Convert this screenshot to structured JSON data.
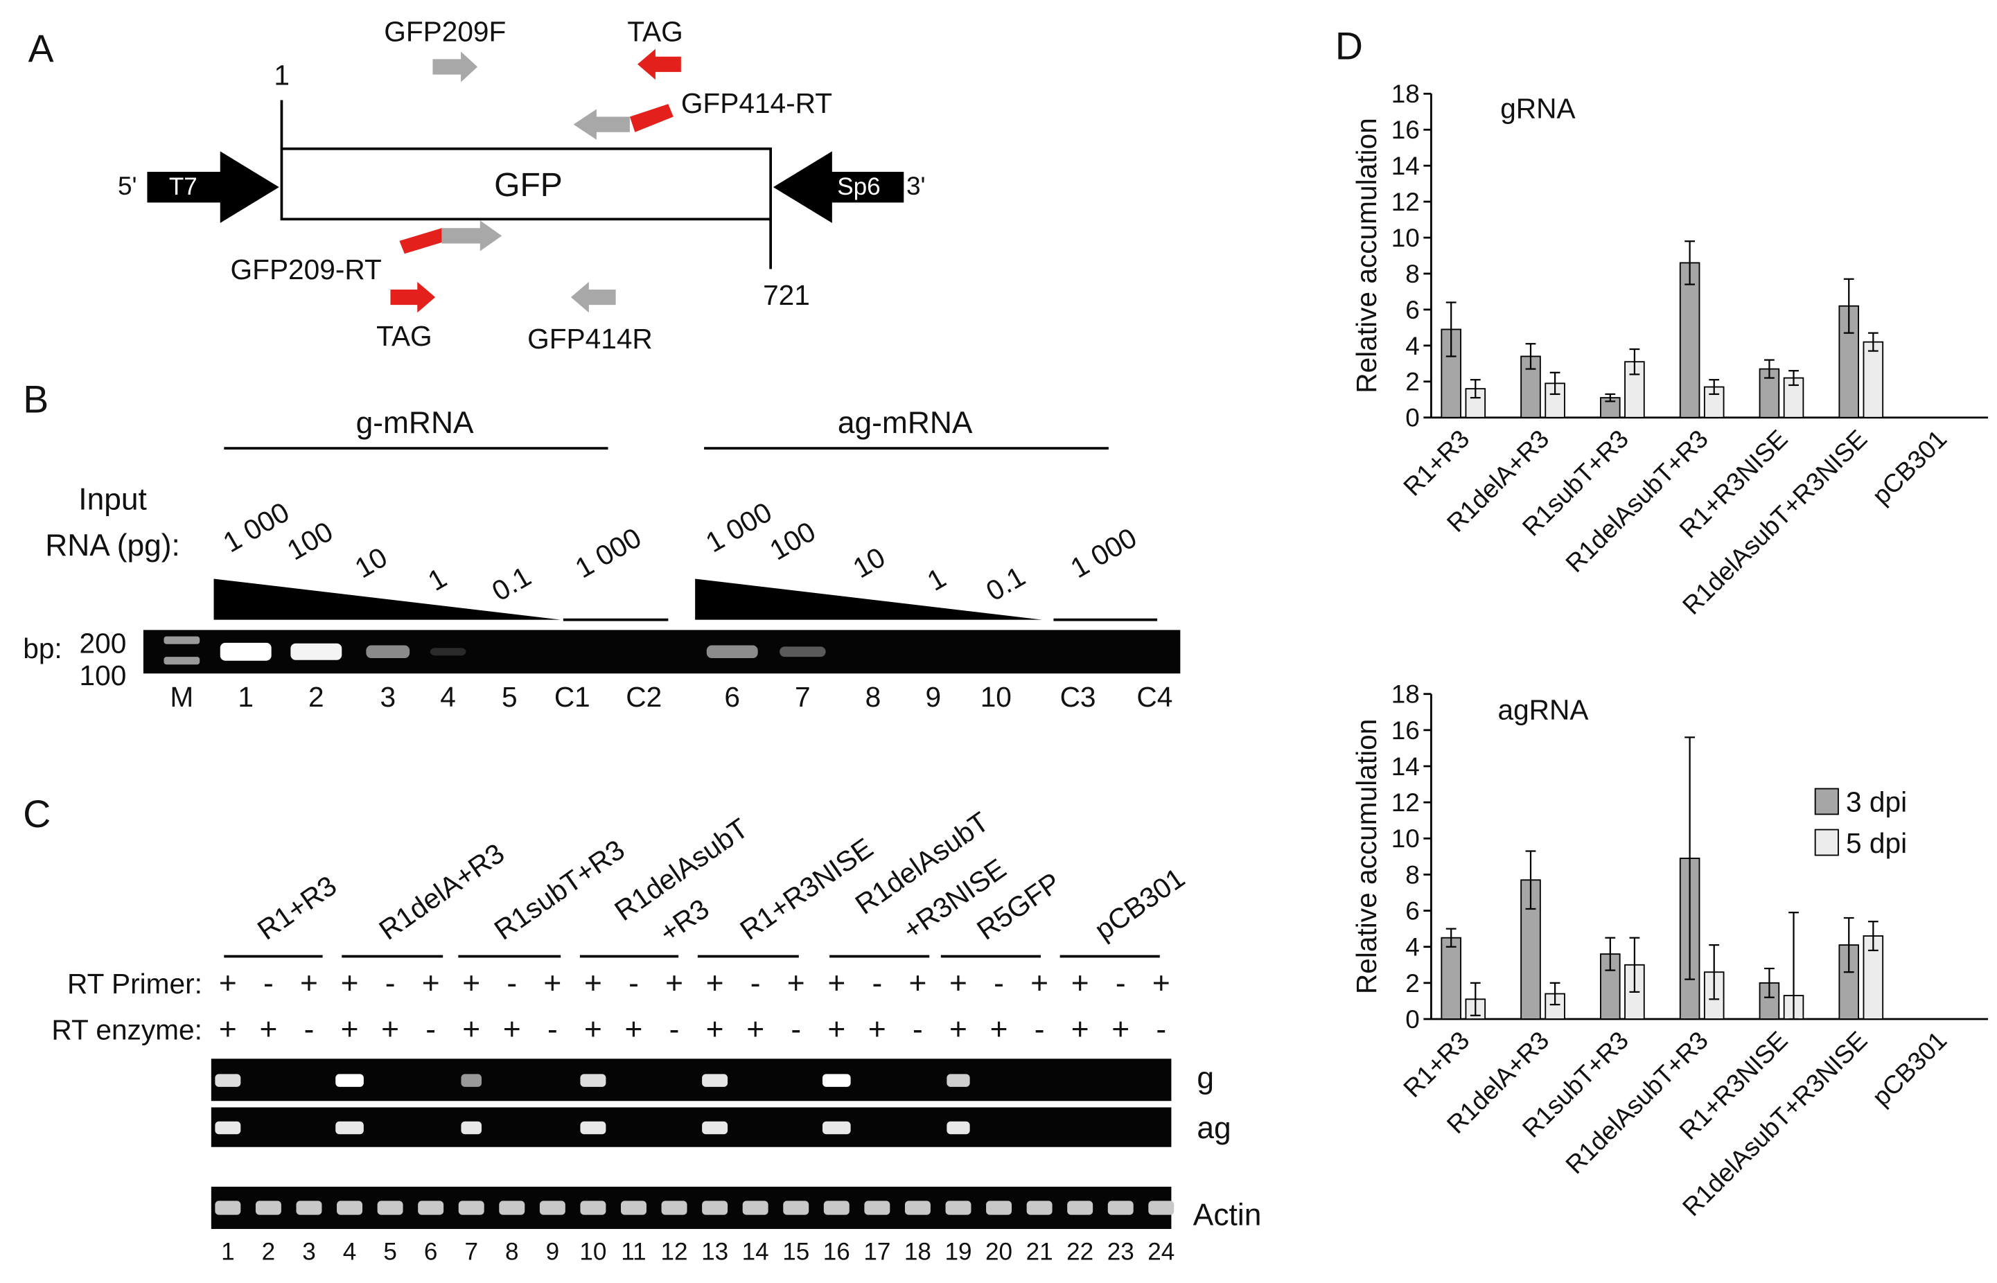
{
  "panels": {
    "a": "A",
    "b": "B",
    "c": "C",
    "d": "D"
  },
  "panel_a": {
    "primers_top": [
      "GFP209F",
      "TAG",
      "GFP414-RT"
    ],
    "primers_bottom": [
      "GFP209-RT",
      "TAG",
      "GFP414R"
    ],
    "pos_start": "1",
    "pos_end": "721",
    "gene": "GFP",
    "promoter_left": "T7",
    "promoter_right": "Sp6",
    "end5": "5'",
    "end3": "3'"
  },
  "panel_b": {
    "group1": "g-mRNA",
    "group2": "ag-mRNA",
    "input_label_1": "Input",
    "input_label_2": "RNA (pg):",
    "conc1": [
      "1 000",
      "100",
      "10",
      "1",
      "0.1",
      "1 000"
    ],
    "conc2": [
      "1 000",
      "100",
      "10",
      "1",
      "0.1",
      "1 000"
    ],
    "bp_label": "bp:",
    "bp_200": "200",
    "bp_100": "100",
    "lanes": [
      "M",
      "1",
      "2",
      "3",
      "4",
      "5",
      "C1",
      "C2",
      "6",
      "7",
      "8",
      "9",
      "10",
      "C3",
      "C4"
    ]
  },
  "panel_c": {
    "samples": [
      "R1+R3",
      "R1delA+R3",
      "R1subT+R3",
      "R1delAsubT",
      "+R3",
      "R1+R3NISE",
      "R1delAsubT",
      "+R3NISE",
      "R5GFP",
      "pCB301"
    ],
    "rt_primer_label": "RT Primer:",
    "rt_enzyme_label": "RT enzyme:",
    "rt_primer": [
      "+",
      "-",
      "+",
      "+",
      "-",
      "+",
      "+",
      "-",
      "+",
      "+",
      "-",
      "+",
      "+",
      "-",
      "+",
      "+",
      "-",
      "+",
      "+",
      "-",
      "+",
      "+",
      "-",
      "+"
    ],
    "rt_enzyme": [
      "+",
      "+",
      "-",
      "+",
      "+",
      "-",
      "+",
      "+",
      "-",
      "+",
      "+",
      "-",
      "+",
      "+",
      "-",
      "+",
      "+",
      "-",
      "+",
      "+",
      "-",
      "+",
      "+",
      "-"
    ],
    "gel_labels": [
      "g",
      "ag",
      "Actin"
    ],
    "lanes": [
      "1",
      "2",
      "3",
      "4",
      "5",
      "6",
      "7",
      "8",
      "9",
      "10",
      "11",
      "12",
      "13",
      "14",
      "15",
      "16",
      "17",
      "18",
      "19",
      "20",
      "21",
      "22",
      "23",
      "24"
    ]
  },
  "chart_data": [
    {
      "type": "bar",
      "title": "gRNA",
      "ylabel": "Relative accumulation",
      "ylim": [
        0,
        18
      ],
      "yticks": [
        "0",
        "2",
        "4",
        "6",
        "8",
        "10",
        "12",
        "14",
        "16",
        "18"
      ],
      "categories": [
        "R1+R3",
        "R1delA+R3",
        "R1subT+R3",
        "R1delAsubT+R3",
        "R1+R3NISE",
        "R1delAsubT+R3NISE",
        "pCB301"
      ],
      "series": [
        {
          "name": "3 dpi",
          "color": "#a6a6a6",
          "values": [
            4.9,
            3.4,
            1.1,
            8.6,
            2.7,
            6.2,
            0
          ],
          "errors": [
            1.5,
            0.7,
            0.2,
            1.2,
            0.5,
            1.5,
            0
          ]
        },
        {
          "name": "5 dpi",
          "color": "#ececec",
          "values": [
            1.6,
            1.9,
            3.1,
            1.7,
            2.2,
            4.2,
            0
          ],
          "errors": [
            0.5,
            0.6,
            0.7,
            0.4,
            0.4,
            0.5,
            0
          ]
        }
      ]
    },
    {
      "type": "bar",
      "title": "agRNA",
      "ylabel": "Relative accumulation",
      "ylim": [
        0,
        18
      ],
      "yticks": [
        "0",
        "2",
        "4",
        "6",
        "8",
        "10",
        "12",
        "14",
        "16",
        "18"
      ],
      "categories": [
        "R1+R3",
        "R1delA+R3",
        "R1subT+R3",
        "R1delAsubT+R3",
        "R1+R3NISE",
        "R1delAsubT+R3NISE",
        "pCB301"
      ],
      "legend": "right",
      "series": [
        {
          "name": "3 dpi",
          "color": "#a6a6a6",
          "values": [
            4.5,
            7.7,
            3.6,
            8.9,
            2.0,
            4.1,
            0
          ],
          "errors": [
            0.5,
            1.6,
            0.9,
            6.7,
            0.8,
            1.5,
            0
          ]
        },
        {
          "name": "5 dpi",
          "color": "#ececec",
          "values": [
            1.1,
            1.4,
            3.0,
            2.6,
            1.3,
            4.6,
            0
          ],
          "errors": [
            0.9,
            0.6,
            1.5,
            1.5,
            4.6,
            0.8,
            0
          ]
        }
      ]
    }
  ]
}
